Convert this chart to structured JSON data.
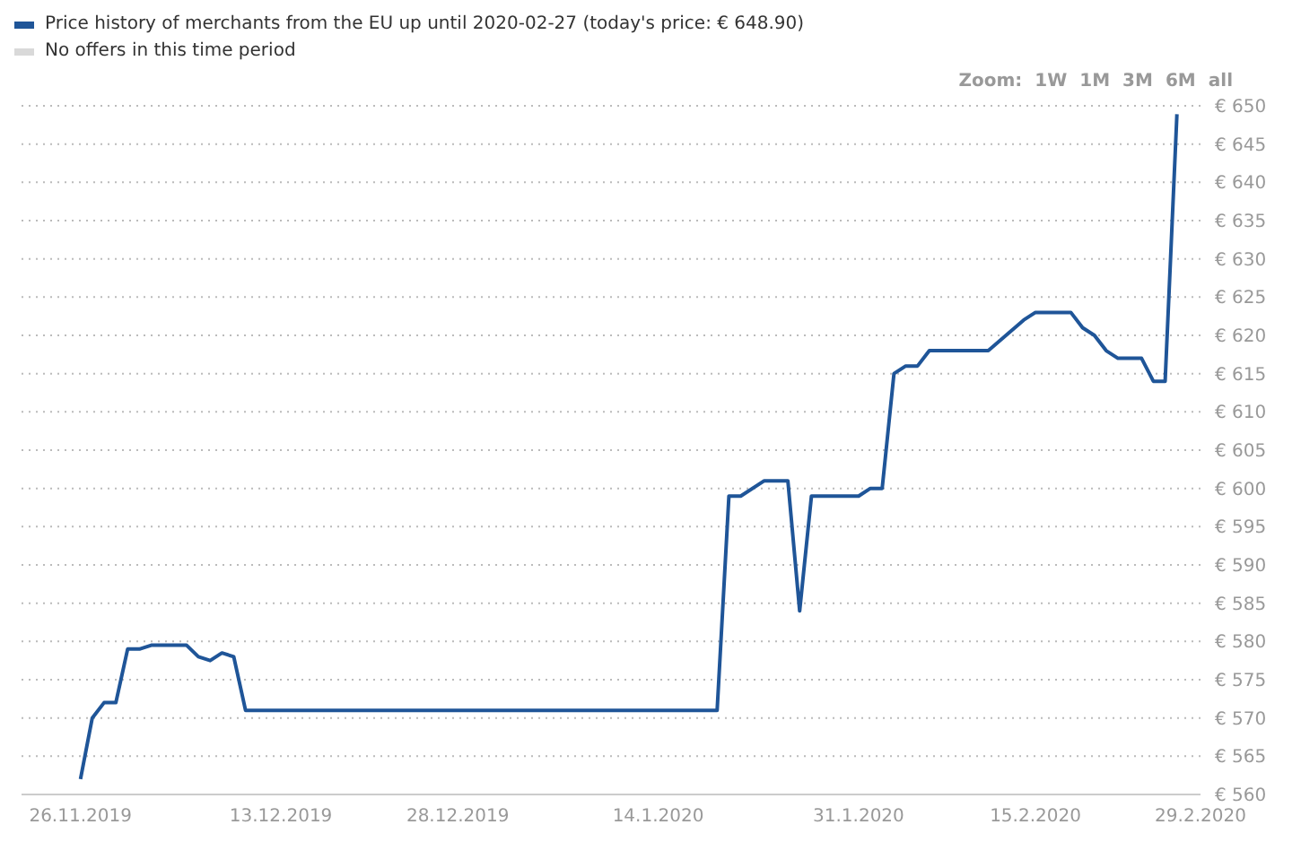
{
  "chart_data": {
    "type": "line",
    "legend": "top left",
    "grid": "y",
    "marker": "none",
    "line_style": "solid",
    "annotations": [
      "Zoom:",
      "1W",
      "1M",
      "3M",
      "6M",
      "all"
    ],
    "x": [
      "2019-11-26",
      "2019-11-27",
      "2019-11-28",
      "2019-11-29",
      "2019-11-30",
      "2019-12-01",
      "2019-12-02",
      "2019-12-05",
      "2019-12-06",
      "2019-12-07",
      "2019-12-08",
      "2019-12-09",
      "2019-12-10",
      "2020-01-19",
      "2020-01-20",
      "2020-01-21",
      "2020-01-23",
      "2020-01-25",
      "2020-01-26",
      "2020-01-27",
      "2020-01-31",
      "2020-02-01",
      "2020-02-02",
      "2020-02-03",
      "2020-02-04",
      "2020-02-05",
      "2020-02-06",
      "2020-02-11",
      "2020-02-14",
      "2020-02-15",
      "2020-02-18",
      "2020-02-19",
      "2020-02-20",
      "2020-02-21",
      "2020-02-22",
      "2020-02-24",
      "2020-02-25",
      "2020-02-26",
      "2020-02-27"
    ],
    "series": [
      {
        "name": "Price history of merchants from the EU up until 2020-02-27 (today's price: € 648.90)",
        "color": "#1f5598",
        "values": [
          562,
          570,
          572,
          572,
          579,
          579,
          579.5,
          579.5,
          578,
          577.5,
          578.5,
          578,
          571,
          571,
          599,
          599,
          601,
          601,
          584,
          599,
          599,
          600,
          600,
          615,
          616,
          616,
          618,
          618,
          622,
          623,
          623,
          621,
          620,
          618,
          617,
          617,
          614,
          614,
          648.9
        ]
      },
      {
        "name": "No offers in this time period",
        "color": "#d9d9d9",
        "values": [
          null,
          null,
          null,
          null,
          null,
          null,
          null,
          null,
          null,
          null,
          null,
          null,
          null,
          null,
          null,
          null,
          null,
          null,
          null,
          null,
          null,
          null,
          null,
          null,
          null,
          null,
          null,
          null,
          null,
          null,
          null,
          null,
          null,
          null,
          null,
          null,
          null,
          null,
          null
        ]
      }
    ],
    "xlim": [
      "2019-11-21",
      "2020-02-29"
    ],
    "xticks": [
      {
        "value": "2019-11-26",
        "label": "26.11.2019"
      },
      {
        "value": "2019-12-13",
        "label": "13.12.2019"
      },
      {
        "value": "2019-12-28",
        "label": "28.12.2019"
      },
      {
        "value": "2020-01-14",
        "label": "14.1.2020"
      },
      {
        "value": "2020-01-31",
        "label": "31.1.2020"
      },
      {
        "value": "2020-02-15",
        "label": "15.2.2020"
      },
      {
        "value": "2020-02-29",
        "label": "29.2.2020"
      }
    ],
    "ylim": [
      560,
      650
    ],
    "yticks": [
      {
        "value": 560,
        "label": "€ 560"
      },
      {
        "value": 565,
        "label": "€ 565"
      },
      {
        "value": 570,
        "label": "€ 570"
      },
      {
        "value": 575,
        "label": "€ 575"
      },
      {
        "value": 580,
        "label": "€ 580"
      },
      {
        "value": 585,
        "label": "€ 585"
      },
      {
        "value": 590,
        "label": "€ 590"
      },
      {
        "value": 595,
        "label": "€ 595"
      },
      {
        "value": 600,
        "label": "€ 600"
      },
      {
        "value": 605,
        "label": "€ 605"
      },
      {
        "value": 610,
        "label": "€ 610"
      },
      {
        "value": 615,
        "label": "€ 615"
      },
      {
        "value": 620,
        "label": "€ 620"
      },
      {
        "value": 625,
        "label": "€ 625"
      },
      {
        "value": 630,
        "label": "€ 630"
      },
      {
        "value": 635,
        "label": "€ 635"
      },
      {
        "value": 640,
        "label": "€ 640"
      },
      {
        "value": 645,
        "label": "€ 645"
      },
      {
        "value": 650,
        "label": "€ 650"
      }
    ]
  }
}
